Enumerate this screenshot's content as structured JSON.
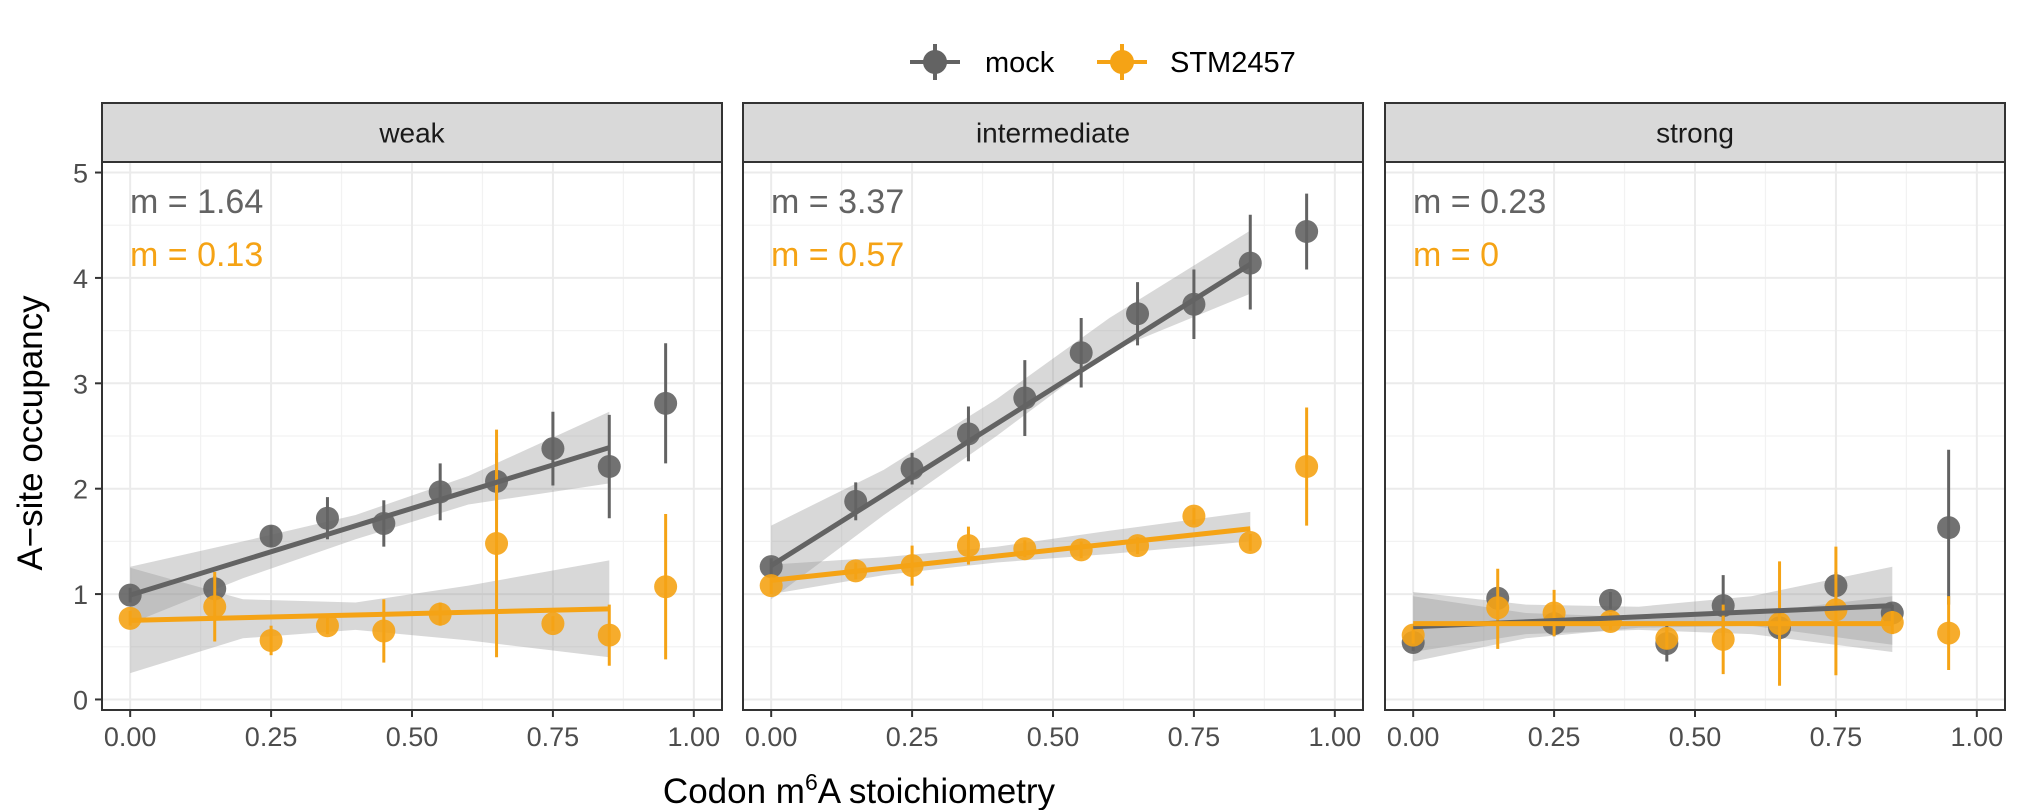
{
  "chart_data": {
    "type": "scatter",
    "xlabel": {
      "prefix": "Codon m",
      "sup": "6",
      "suffix": "A stoichiometry"
    },
    "ylabel": "A−site occupancy",
    "xlim": [
      -0.05,
      1.05
    ],
    "ylim": [
      -0.1,
      5.1
    ],
    "x_ticks": [
      0,
      0.25,
      0.5,
      0.75,
      1
    ],
    "x_tick_labels": [
      "0.00",
      "0.25",
      "0.50",
      "0.75",
      "1.00"
    ],
    "y_ticks": [
      0,
      1,
      2,
      3,
      4,
      5
    ],
    "y_tick_labels": [
      "0",
      "1",
      "2",
      "3",
      "4",
      "5"
    ],
    "grid": true,
    "legend_position": "top",
    "legend": [
      {
        "name": "mock",
        "color": "#636363"
      },
      {
        "name": "STM2457",
        "color": "#F5A315"
      }
    ],
    "panels": [
      {
        "strip": "weak",
        "annotations": [
          {
            "text": "m = 1.64",
            "series": "mock"
          },
          {
            "text": "m = 0.13",
            "series": "STM2457"
          }
        ],
        "series": [
          {
            "name": "mock",
            "points": [
              {
                "x": 0.0,
                "y": 0.99,
                "lo": 0.92,
                "hi": 1.06
              },
              {
                "x": 0.15,
                "y": 1.05,
                "lo": 0.93,
                "hi": 1.17
              },
              {
                "x": 0.25,
                "y": 1.55,
                "lo": 1.45,
                "hi": 1.65
              },
              {
                "x": 0.35,
                "y": 1.72,
                "lo": 1.52,
                "hi": 1.92
              },
              {
                "x": 0.45,
                "y": 1.67,
                "lo": 1.45,
                "hi": 1.89
              },
              {
                "x": 0.55,
                "y": 1.97,
                "lo": 1.7,
                "hi": 2.24
              },
              {
                "x": 0.65,
                "y": 2.07,
                "lo": 1.8,
                "hi": 2.34
              },
              {
                "x": 0.75,
                "y": 2.38,
                "lo": 2.03,
                "hi": 2.73
              },
              {
                "x": 0.85,
                "y": 2.21,
                "lo": 1.72,
                "hi": 2.7
              },
              {
                "x": 0.95,
                "y": 2.81,
                "lo": 2.24,
                "hi": 3.38
              }
            ],
            "fit": {
              "x": [
                0,
                0.85
              ],
              "y": [
                0.99,
                2.39
              ]
            },
            "ribbon": {
              "x": [
                0,
                0.2,
                0.4,
                0.6,
                0.85
              ],
              "lo": [
                0.72,
                1.15,
                1.52,
                1.85,
                2.05
              ],
              "hi": [
                1.26,
                1.5,
                1.75,
                2.12,
                2.73
              ]
            }
          },
          {
            "name": "STM2457",
            "points": [
              {
                "x": 0.0,
                "y": 0.77,
                "lo": 0.7,
                "hi": 0.84
              },
              {
                "x": 0.15,
                "y": 0.88,
                "lo": 0.55,
                "hi": 1.21
              },
              {
                "x": 0.25,
                "y": 0.56,
                "lo": 0.42,
                "hi": 0.7
              },
              {
                "x": 0.35,
                "y": 0.7,
                "lo": 0.62,
                "hi": 0.78
              },
              {
                "x": 0.45,
                "y": 0.65,
                "lo": 0.35,
                "hi": 0.95
              },
              {
                "x": 0.55,
                "y": 0.81,
                "lo": 0.7,
                "hi": 0.92
              },
              {
                "x": 0.65,
                "y": 1.48,
                "lo": 0.4,
                "hi": 2.56
              },
              {
                "x": 0.75,
                "y": 0.72,
                "lo": 0.65,
                "hi": 0.79
              },
              {
                "x": 0.85,
                "y": 0.61,
                "lo": 0.32,
                "hi": 0.9
              },
              {
                "x": 0.95,
                "y": 1.07,
                "lo": 0.38,
                "hi": 1.76
              }
            ],
            "fit": {
              "x": [
                0,
                0.85
              ],
              "y": [
                0.75,
                0.86
              ]
            },
            "ribbon": {
              "x": [
                0,
                0.2,
                0.4,
                0.6,
                0.85
              ],
              "lo": [
                0.25,
                0.58,
                0.66,
                0.56,
                0.4
              ],
              "hi": [
                1.25,
                0.95,
                0.92,
                1.08,
                1.32
              ]
            }
          }
        ]
      },
      {
        "strip": "intermediate",
        "annotations": [
          {
            "text": "m = 3.37",
            "series": "mock"
          },
          {
            "text": "m = 0.57",
            "series": "STM2457"
          }
        ],
        "series": [
          {
            "name": "mock",
            "points": [
              {
                "x": 0.0,
                "y": 1.26,
                "lo": 1.18,
                "hi": 1.34
              },
              {
                "x": 0.15,
                "y": 1.88,
                "lo": 1.7,
                "hi": 2.06
              },
              {
                "x": 0.25,
                "y": 2.19,
                "lo": 2.04,
                "hi": 2.34
              },
              {
                "x": 0.35,
                "y": 2.52,
                "lo": 2.26,
                "hi": 2.78
              },
              {
                "x": 0.45,
                "y": 2.86,
                "lo": 2.5,
                "hi": 3.22
              },
              {
                "x": 0.55,
                "y": 3.29,
                "lo": 2.96,
                "hi": 3.62
              },
              {
                "x": 0.65,
                "y": 3.66,
                "lo": 3.36,
                "hi": 3.96
              },
              {
                "x": 0.75,
                "y": 3.75,
                "lo": 3.42,
                "hi": 4.08
              },
              {
                "x": 0.85,
                "y": 4.14,
                "lo": 3.7,
                "hi": 4.6
              },
              {
                "x": 0.95,
                "y": 4.44,
                "lo": 4.08,
                "hi": 4.8
              }
            ],
            "fit": {
              "x": [
                0,
                0.85
              ],
              "y": [
                1.27,
                4.13
              ]
            },
            "ribbon": {
              "x": [
                0,
                0.2,
                0.4,
                0.6,
                0.85
              ],
              "lo": [
                0.95,
                1.75,
                2.5,
                3.3,
                3.85
              ],
              "hi": [
                1.65,
                2.18,
                2.85,
                3.62,
                4.45
              ]
            }
          },
          {
            "name": "STM2457",
            "points": [
              {
                "x": 0.0,
                "y": 1.08,
                "lo": 1.0,
                "hi": 1.16
              },
              {
                "x": 0.15,
                "y": 1.22,
                "lo": 1.14,
                "hi": 1.3
              },
              {
                "x": 0.25,
                "y": 1.27,
                "lo": 1.08,
                "hi": 1.46
              },
              {
                "x": 0.35,
                "y": 1.46,
                "lo": 1.28,
                "hi": 1.64
              },
              {
                "x": 0.45,
                "y": 1.43,
                "lo": 1.35,
                "hi": 1.51
              },
              {
                "x": 0.55,
                "y": 1.42,
                "lo": 1.34,
                "hi": 1.5
              },
              {
                "x": 0.65,
                "y": 1.46,
                "lo": 1.38,
                "hi": 1.54
              },
              {
                "x": 0.75,
                "y": 1.74,
                "lo": 1.66,
                "hi": 1.82
              },
              {
                "x": 0.85,
                "y": 1.49,
                "lo": 1.41,
                "hi": 1.57
              },
              {
                "x": 0.95,
                "y": 2.21,
                "lo": 1.65,
                "hi": 2.77
              }
            ],
            "fit": {
              "x": [
                0,
                0.85
              ],
              "y": [
                1.13,
                1.62
              ]
            },
            "ribbon": {
              "x": [
                0,
                0.2,
                0.4,
                0.6,
                0.85
              ],
              "lo": [
                1.0,
                1.18,
                1.3,
                1.38,
                1.5
              ],
              "hi": [
                1.28,
                1.35,
                1.45,
                1.6,
                1.78
              ]
            }
          }
        ]
      },
      {
        "strip": "strong",
        "annotations": [
          {
            "text": "m = 0.23",
            "series": "mock"
          },
          {
            "text": "m = 0",
            "series": "STM2457"
          }
        ],
        "series": [
          {
            "name": "mock",
            "points": [
              {
                "x": 0.0,
                "y": 0.54,
                "lo": 0.46,
                "hi": 0.62
              },
              {
                "x": 0.15,
                "y": 0.96,
                "lo": 0.85,
                "hi": 1.07
              },
              {
                "x": 0.25,
                "y": 0.72,
                "lo": 0.6,
                "hi": 0.84
              },
              {
                "x": 0.35,
                "y": 0.94,
                "lo": 0.86,
                "hi": 1.02
              },
              {
                "x": 0.45,
                "y": 0.53,
                "lo": 0.36,
                "hi": 0.7
              },
              {
                "x": 0.55,
                "y": 0.89,
                "lo": 0.6,
                "hi": 1.18
              },
              {
                "x": 0.65,
                "y": 0.68,
                "lo": 0.55,
                "hi": 0.81
              },
              {
                "x": 0.75,
                "y": 1.08,
                "lo": 0.95,
                "hi": 1.21
              },
              {
                "x": 0.85,
                "y": 0.82,
                "lo": 0.74,
                "hi": 0.9
              },
              {
                "x": 0.95,
                "y": 1.63,
                "lo": 0.9,
                "hi": 2.37
              }
            ],
            "fit": {
              "x": [
                0,
                0.85
              ],
              "y": [
                0.69,
                0.89
              ]
            },
            "ribbon": {
              "x": [
                0,
                0.2,
                0.4,
                0.6,
                0.85
              ],
              "lo": [
                0.36,
                0.58,
                0.68,
                0.7,
                0.52
              ],
              "hi": [
                1.02,
                0.9,
                0.88,
                0.98,
                1.26
              ]
            }
          },
          {
            "name": "STM2457",
            "points": [
              {
                "x": 0.0,
                "y": 0.61,
                "lo": 0.53,
                "hi": 0.69
              },
              {
                "x": 0.15,
                "y": 0.87,
                "lo": 0.48,
                "hi": 1.24
              },
              {
                "x": 0.25,
                "y": 0.82,
                "lo": 0.6,
                "hi": 1.04
              },
              {
                "x": 0.35,
                "y": 0.74,
                "lo": 0.66,
                "hi": 0.82
              },
              {
                "x": 0.45,
                "y": 0.58,
                "lo": 0.48,
                "hi": 0.68
              },
              {
                "x": 0.55,
                "y": 0.57,
                "lo": 0.24,
                "hi": 0.9
              },
              {
                "x": 0.65,
                "y": 0.72,
                "lo": 0.13,
                "hi": 1.31
              },
              {
                "x": 0.75,
                "y": 0.85,
                "lo": 0.23,
                "hi": 1.45
              },
              {
                "x": 0.85,
                "y": 0.73,
                "lo": 0.62,
                "hi": 0.84
              },
              {
                "x": 0.95,
                "y": 0.63,
                "lo": 0.28,
                "hi": 0.98
              }
            ],
            "fit": {
              "x": [
                0,
                0.85
              ],
              "y": [
                0.72,
                0.72
              ]
            },
            "ribbon": {
              "x": [
                0,
                0.2,
                0.4,
                0.6,
                0.85
              ],
              "lo": [
                0.45,
                0.62,
                0.66,
                0.62,
                0.45
              ],
              "hi": [
                0.98,
                0.82,
                0.78,
                0.82,
                0.98
              ]
            }
          }
        ]
      }
    ]
  }
}
